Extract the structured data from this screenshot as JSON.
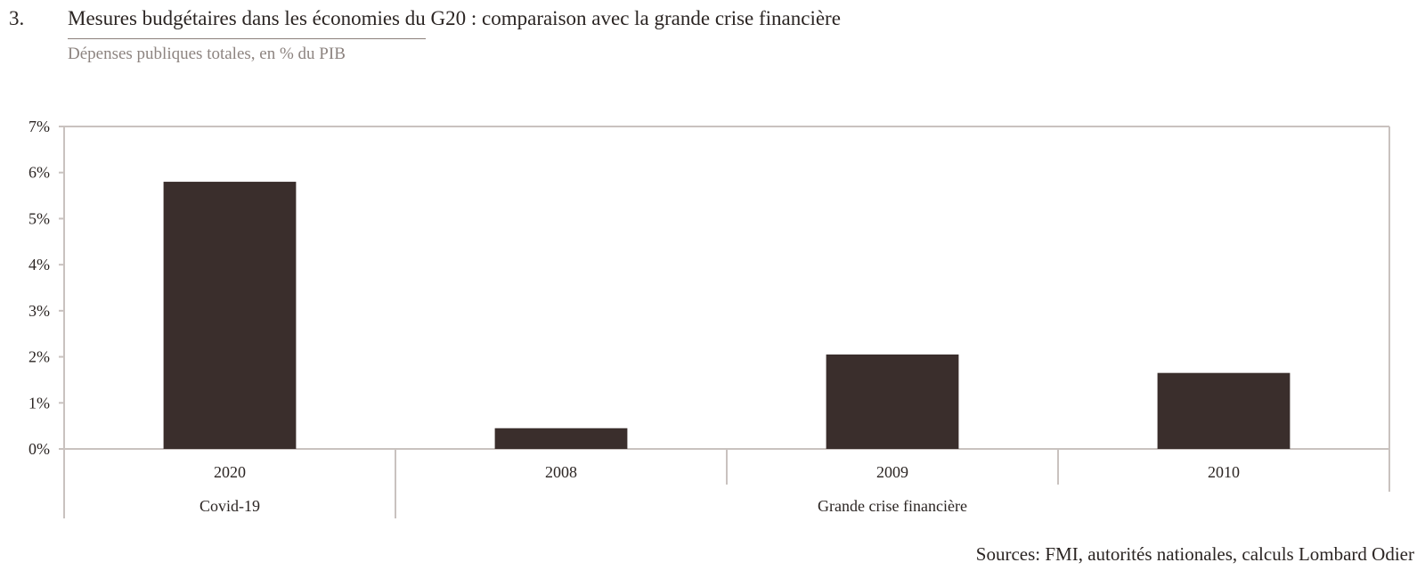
{
  "figure": {
    "number": "3.",
    "title": "Mesures budgétaires dans les économies du G20 : comparaison avec la grande crise financière",
    "subtitle": "Dépenses publiques totales, en % du PIB",
    "source": "Sources: FMI, autorités nationales, calculs Lombard Odier"
  },
  "chart_data": {
    "type": "bar",
    "title": "Mesures budgétaires dans les économies du G20 : comparaison avec la grande crise financière",
    "subtitle": "Dépenses publiques totales, en % du PIB",
    "categories": [
      "2020",
      "2008",
      "2009",
      "2010"
    ],
    "values": [
      5.8,
      0.45,
      2.05,
      1.65
    ],
    "groups": [
      {
        "label": "Covid-19",
        "categories": [
          "2020"
        ]
      },
      {
        "label": "Grande crise financière",
        "categories": [
          "2008",
          "2009",
          "2010"
        ]
      }
    ],
    "ylim": [
      0,
      7
    ],
    "yticks": [
      0,
      1,
      2,
      3,
      4,
      5,
      6,
      7
    ],
    "ytick_labels": [
      "0%",
      "1%",
      "2%",
      "3%",
      "4%",
      "5%",
      "6%",
      "7%"
    ],
    "xlabel": "",
    "ylabel": "",
    "grid": false,
    "legend": "none",
    "colors": {
      "bar": "#3a2e2c",
      "axis": "#c9c2bf",
      "text": "#2b2523"
    }
  }
}
